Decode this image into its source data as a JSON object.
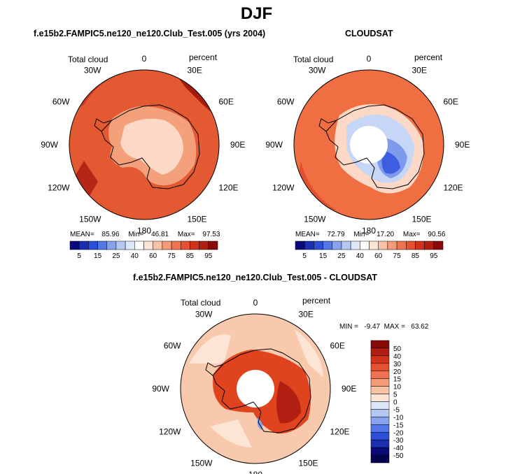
{
  "figure_title": "DJF",
  "panels": [
    {
      "title": "f.e15b2.FAMPIC5.ne120_ne120.Club_Test.005 (yrs 2004)",
      "variable": "Total cloud",
      "units": "percent",
      "stats": {
        "mean_label": "MEAN=",
        "mean": "85.96",
        "min_label": "Min=",
        "min": "46.81",
        "max_label": "Max=",
        "max": "97.53"
      }
    },
    {
      "title": "CLOUDSAT",
      "variable": "Total cloud",
      "units": "percent",
      "stats": {
        "mean_label": "MEAN=",
        "mean": "72.79",
        "min_label": "Min=",
        "min": "17.20",
        "max_label": "Max=",
        "max": "90.56"
      }
    },
    {
      "title": "f.e15b2.FAMPIC5.ne120_ne120.Club_Test.005 - CLOUDSAT",
      "variable": "Total cloud",
      "units": "percent",
      "stats_line": "MIN =   -9.47  MAX =   63.62"
    }
  ],
  "longitude_labels": [
    "0",
    "30E",
    "60E",
    "90E",
    "120E",
    "150E",
    "180",
    "150W",
    "120W",
    "90W",
    "60W",
    "30W"
  ],
  "absolute_colorbar": {
    "tick_labels": [
      "5",
      "15",
      "25",
      "40",
      "60",
      "75",
      "85",
      "95"
    ],
    "colors": [
      "#0a0a7a",
      "#1a2fb0",
      "#2b4fd8",
      "#5377e8",
      "#87a3ee",
      "#b5c8f3",
      "#dde7fa",
      "#ffffff",
      "#fde5d5",
      "#f9c2a5",
      "#f59b78",
      "#ef7350",
      "#e55030",
      "#d0321c",
      "#b01f12",
      "#870b08"
    ]
  },
  "difference_colorbar": {
    "tick_labels": [
      "50",
      "40",
      "30",
      "20",
      "15",
      "10",
      "5",
      "0",
      "-5",
      "-10",
      "-15",
      "-20",
      "-30",
      "-40",
      "-50"
    ],
    "colors": [
      "#870b08",
      "#b01f12",
      "#d0321c",
      "#e55030",
      "#ef7350",
      "#f59b78",
      "#f9c2a5",
      "#fde5d5",
      "#dde7fa",
      "#b5c8f3",
      "#87a3ee",
      "#5377e8",
      "#2b4fd8",
      "#1a2fb0",
      "#0a0a7a",
      "#04044e"
    ]
  },
  "map_colors": {
    "model_ocean": "#e35a32",
    "model_outer": "#cf3a20",
    "model_interior": "#fbd9c6",
    "obs_ocean": "#ef6e42",
    "obs_interior_blue": "#9db9ef",
    "obs_deep_blue": "#3d5ee0",
    "diff_ocean": "#f9c9ad",
    "diff_land": "#e0441f",
    "coast": "#000000"
  }
}
